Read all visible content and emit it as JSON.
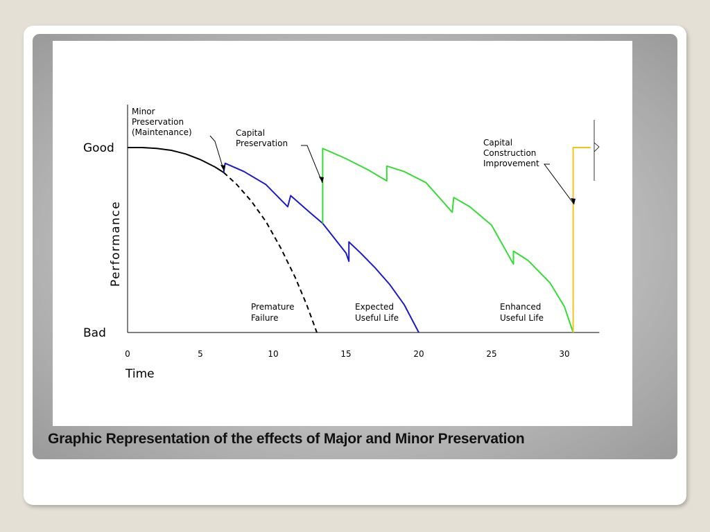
{
  "caption": "Graphic Representation of the effects of Major and Minor Preservation",
  "chart_data": {
    "type": "line",
    "title": "",
    "xlabel": "Time",
    "ylabel": "Performance",
    "xlim": [
      0,
      32
    ],
    "ylim": [
      0,
      100
    ],
    "x_ticks": [
      0,
      5,
      10,
      15,
      20,
      25,
      30
    ],
    "y_labels": [
      {
        "label": "Good",
        "value": 100
      },
      {
        "label": "Bad",
        "value": 0
      }
    ],
    "grid": false,
    "legend": "none",
    "series": [
      {
        "color": "#000000",
        "style": "solid",
        "points": [
          [
            0,
            100
          ],
          [
            1,
            100
          ],
          [
            2,
            99.5
          ],
          [
            3,
            98.5
          ],
          [
            4,
            96.5
          ],
          [
            5,
            93.5
          ],
          [
            6,
            89.5
          ],
          [
            6.6,
            86.5
          ]
        ]
      },
      {
        "color": "#000000",
        "style": "dashed",
        "points": [
          [
            6.6,
            86.5
          ],
          [
            7.5,
            80
          ],
          [
            8.5,
            71
          ],
          [
            9.5,
            60
          ],
          [
            10.5,
            46
          ],
          [
            11.5,
            30
          ],
          [
            12.3,
            15
          ],
          [
            13,
            0
          ]
        ]
      },
      {
        "color": "#1a1acc",
        "style": "solid",
        "points": [
          [
            6.6,
            86.5
          ],
          [
            6.7,
            91.5
          ],
          [
            8,
            87
          ],
          [
            9.5,
            80
          ],
          [
            11,
            68
          ],
          [
            11.2,
            74
          ],
          [
            12.5,
            65
          ],
          [
            13.4,
            59
          ],
          [
            14,
            53
          ],
          [
            15,
            43
          ],
          [
            15.2,
            38.5
          ],
          [
            15.2,
            49
          ],
          [
            16,
            43
          ],
          [
            17,
            35
          ],
          [
            18,
            26
          ],
          [
            19,
            15
          ],
          [
            20,
            0
          ]
        ]
      },
      {
        "color": "#33dd33",
        "style": "solid",
        "points": [
          [
            13.4,
            59
          ],
          [
            13.4,
            99.5
          ],
          [
            15,
            94
          ],
          [
            16.5,
            88
          ],
          [
            17.8,
            82
          ],
          [
            17.8,
            90
          ],
          [
            19,
            87
          ],
          [
            20.5,
            81
          ],
          [
            22.3,
            65
          ],
          [
            22.4,
            73
          ],
          [
            23.5,
            68
          ],
          [
            25,
            58
          ],
          [
            26.5,
            37
          ],
          [
            26.5,
            44
          ],
          [
            27.5,
            39
          ],
          [
            29,
            27
          ],
          [
            30,
            14
          ],
          [
            30.6,
            0
          ]
        ]
      },
      {
        "color": "#f2c418",
        "style": "solid",
        "points": [
          [
            30.6,
            0
          ],
          [
            30.6,
            100
          ],
          [
            31.8,
            100
          ]
        ]
      }
    ],
    "annotations": [
      {
        "lines": [
          "Minor",
          "Preservation",
          "(Maintenance)"
        ]
      },
      {
        "lines": [
          "Capital",
          "Preservation"
        ]
      },
      {
        "lines": [
          "Capital",
          "Construction",
          "Improvement"
        ]
      },
      {
        "lines": [
          "Premature",
          "Failure"
        ]
      },
      {
        "lines": [
          "Expected",
          "Useful Life"
        ]
      },
      {
        "lines": [
          "Enhanced",
          "Useful Life"
        ]
      }
    ]
  }
}
